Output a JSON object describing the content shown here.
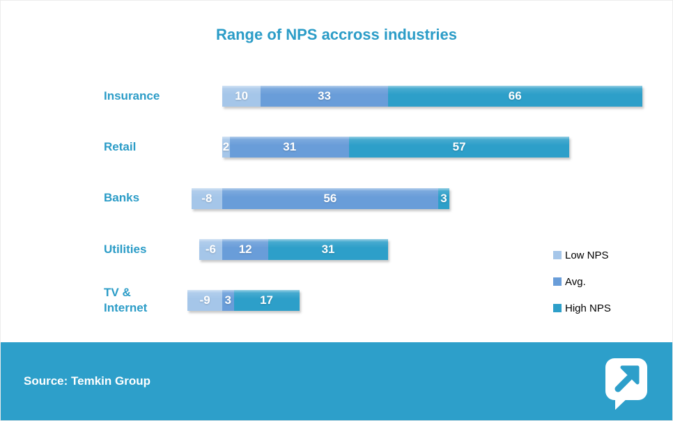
{
  "footer": {
    "source_label": "Source: Temkin Group",
    "logo_icon": "speech-bubble-arrow-icon"
  },
  "colors": {
    "low": "#a5c6e9",
    "avg": "#699dd9",
    "high": "#2d9fc9",
    "banner": "#2d9fca",
    "accent_text": "#2b9cc7",
    "legend_text": "#000000",
    "value_text": "#ffffff"
  },
  "legend": {
    "position": "middle-right",
    "items": [
      {
        "label": "Low NPS",
        "series": "low"
      },
      {
        "label": "Avg.",
        "series": "avg"
      },
      {
        "label": "High NPS",
        "series": "high"
      }
    ]
  },
  "chart_data": {
    "type": "bar",
    "orientation": "horizontal",
    "stacked": true,
    "title": "Range of NPS accross industries",
    "categories": [
      "Insurance",
      "Retail",
      "Banks",
      "Utilities",
      "TV & Internet"
    ],
    "series": [
      {
        "name": "Low NPS",
        "key": "low",
        "values": [
          10,
          2,
          -8,
          -6,
          -9
        ]
      },
      {
        "name": "Avg.",
        "key": "avg",
        "values": [
          33,
          31,
          56,
          12,
          3
        ]
      },
      {
        "name": "High NPS",
        "key": "high",
        "values": [
          66,
          57,
          3,
          31,
          17
        ]
      }
    ],
    "value_labels_shown": true,
    "axes_hidden": true,
    "baseline": 0,
    "note": "negative low values extend left of the zero baseline"
  }
}
